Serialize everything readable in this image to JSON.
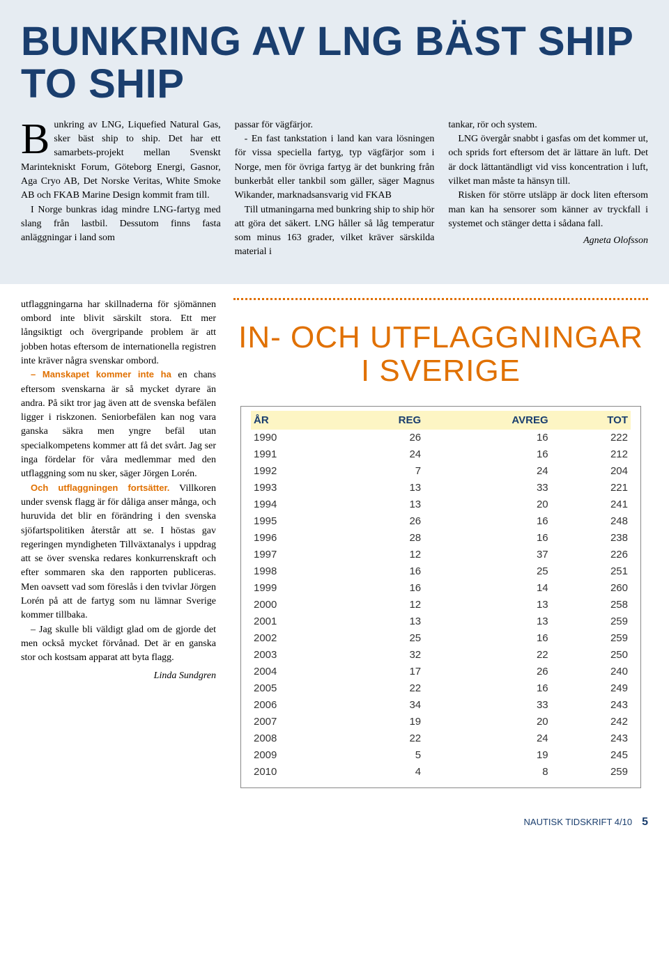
{
  "top": {
    "headline": "BUNKRING AV LNG BÄST SHIP TO SHIP",
    "col1_dropcap": "B",
    "col1_rest": "unkring av LNG, Liquefied Natural Gas, sker bäst ship to ship. Det har ett samarbets-projekt mellan Svenskt Marintekniskt Forum, Göteborg Energi, Gasnor, Aga Cryo AB, Det Norske Veritas, White Smoke AB och FKAB Marine Design kommit fram till.",
    "col1_p2": "I Norge bunkras idag mindre LNG-fartyg med slang från lastbil. Dessutom finns fasta anläggningar i land som",
    "col2_p1": "passar för vägfärjor.",
    "col2_p2": "- En fast tankstation i land kan vara lösningen för vissa speciella fartyg, typ vägfärjor som i Norge, men för övriga fartyg är det bunkring från bunkerbåt eller tankbil som gäller, säger Magnus Wikander, marknadsansvarig vid FKAB",
    "col2_p3": "Till utmaningarna med bunkring ship to ship hör att göra det säkert. LNG håller så låg temperatur som minus 163 grader, vilket kräver särskilda material i",
    "col3_p1": "tankar, rör och system.",
    "col3_p2": "LNG övergår snabbt i gasfas om det kommer ut, och sprids fort eftersom det är lättare än luft. Det är dock lättantändligt vid viss koncentration i luft, vilket man måste ta hänsyn till.",
    "col3_p3": "Risken för större utsläpp är dock liten eftersom man kan ha sensorer som känner av tryckfall i systemet och stänger detta i sådana fall.",
    "byline": "Agneta Olofsson"
  },
  "left": {
    "p1": "utflaggningarna har skillnaderna för sjömännen ombord inte blivit särskilt stora. Ett mer långsiktigt och övergripande problem är att jobben hotas eftersom de internationella registren inte kräver några svenskar ombord.",
    "lead2": "– Manskapet kommer inte ha",
    "p2": " en chans eftersom svenskarna är så mycket dyrare än andra. På sikt tror jag även att de svenska befälen ligger i riskzonen. Seniorbefälen kan nog vara ganska säkra men yngre befäl utan specialkompetens kommer att få det svårt. Jag ser inga fördelar för våra medlemmar med den utflaggning som nu sker, säger Jörgen Lorén.",
    "lead3": "Och utflaggningen fortsätter.",
    "p3": " Villkoren under svensk flagg är för dåliga anser många, och huruvida det blir en förändring i den svenska sjöfartspolitiken återstår att se. I höstas gav regeringen myndigheten Tillväxtanalys i uppdrag att se över svenska redares konkurrenskraft och efter sommaren ska den rapporten publiceras. Men oavsett vad som föreslås i den tvivlar Jörgen Lorén på att de fartyg som nu lämnar Sverige kommer tillbaka.",
    "p4": "– Jag skulle bli väldigt glad om de gjorde det men också mycket förvånad. Det är en ganska stor och kostsam apparat att byta flagg.",
    "author": "Linda Sundgren"
  },
  "right": {
    "headline": "IN- OCH UTFLAGGNINGAR I SVERIGE",
    "table": {
      "columns": [
        "ÅR",
        "REG",
        "AVREG",
        "TOT"
      ],
      "rows": [
        [
          "1990",
          "26",
          "16",
          "222"
        ],
        [
          "1991",
          "24",
          "16",
          "212"
        ],
        [
          "1992",
          "7",
          "24",
          "204"
        ],
        [
          "1993",
          "13",
          "33",
          "221"
        ],
        [
          "1994",
          "13",
          "20",
          "241"
        ],
        [
          "1995",
          "26",
          "16",
          "248"
        ],
        [
          "1996",
          "28",
          "16",
          "238"
        ],
        [
          "1997",
          "12",
          "37",
          "226"
        ],
        [
          "1998",
          "16",
          "25",
          "251"
        ],
        [
          "1999",
          "16",
          "14",
          "260"
        ],
        [
          "2000",
          "12",
          "13",
          "258"
        ],
        [
          "2001",
          "13",
          "13",
          "259"
        ],
        [
          "2002",
          "25",
          "16",
          "259"
        ],
        [
          "2003",
          "32",
          "22",
          "250"
        ],
        [
          "2004",
          "17",
          "26",
          "240"
        ],
        [
          "2005",
          "22",
          "16",
          "249"
        ],
        [
          "2006",
          "34",
          "33",
          "243"
        ],
        [
          "2007",
          "19",
          "20",
          "242"
        ],
        [
          "2008",
          "22",
          "24",
          "243"
        ],
        [
          "2009",
          "5",
          "19",
          "245"
        ],
        [
          "2010",
          "4",
          "8",
          "259"
        ]
      ]
    }
  },
  "footer": {
    "journal": "NAUTISK TIDSKRIFT 4/10",
    "page": "5"
  }
}
